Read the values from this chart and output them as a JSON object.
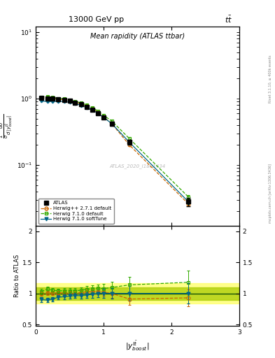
{
  "title_main": "13000 GeV pp",
  "title_right": "tt̅",
  "plot_title": "Mean rapidity (ATLAS ttbar)",
  "ylabel_ratio": "Ratio to ATLAS",
  "xlabel": "$|y^{t\\bar{t}}_{boost}|$",
  "watermark": "ATLAS_2020_I1801434",
  "rivet_label": "Rivet 3.1.10, ≥ 400k events",
  "mcplots_label": "mcplots.cern.ch [arXiv:1306.3436]",
  "x_atlas": [
    0.08,
    0.17,
    0.25,
    0.33,
    0.42,
    0.5,
    0.58,
    0.67,
    0.75,
    0.83,
    0.92,
    1.0,
    1.12,
    1.38,
    2.25
  ],
  "y_atlas": [
    1.02,
    1.01,
    0.99,
    0.97,
    0.95,
    0.92,
    0.87,
    0.82,
    0.75,
    0.68,
    0.6,
    0.52,
    0.42,
    0.22,
    0.028
  ],
  "y_atlas_err": [
    0.04,
    0.03,
    0.03,
    0.03,
    0.03,
    0.03,
    0.03,
    0.03,
    0.03,
    0.03,
    0.03,
    0.03,
    0.03,
    0.02,
    0.004
  ],
  "x_mc": [
    0.08,
    0.17,
    0.25,
    0.33,
    0.42,
    0.5,
    0.58,
    0.67,
    0.75,
    0.83,
    0.92,
    1.0,
    1.12,
    1.38,
    2.25
  ],
  "y_herwig_pp": [
    1.02,
    1.02,
    1.0,
    0.98,
    0.96,
    0.93,
    0.88,
    0.83,
    0.77,
    0.7,
    0.62,
    0.53,
    0.42,
    0.2,
    0.026
  ],
  "y_hpp_err": [
    0.01,
    0.01,
    0.01,
    0.01,
    0.01,
    0.01,
    0.01,
    0.01,
    0.01,
    0.01,
    0.01,
    0.01,
    0.01,
    0.008,
    0.001
  ],
  "y_herwig710d": [
    1.05,
    1.08,
    1.04,
    1.01,
    0.99,
    0.96,
    0.91,
    0.86,
    0.8,
    0.73,
    0.65,
    0.56,
    0.46,
    0.25,
    0.033
  ],
  "y_h710d_err": [
    0.02,
    0.02,
    0.02,
    0.02,
    0.02,
    0.02,
    0.02,
    0.02,
    0.02,
    0.02,
    0.02,
    0.02,
    0.02,
    0.015,
    0.002
  ],
  "y_herwig710s": [
    0.92,
    0.9,
    0.9,
    0.91,
    0.9,
    0.88,
    0.84,
    0.79,
    0.73,
    0.67,
    0.6,
    0.52,
    0.42,
    0.22,
    0.028
  ],
  "y_h710s_err": [
    0.02,
    0.02,
    0.02,
    0.02,
    0.02,
    0.02,
    0.02,
    0.02,
    0.02,
    0.02,
    0.02,
    0.02,
    0.02,
    0.015,
    0.002
  ],
  "color_atlas": "#000000",
  "color_herwig_pp": "#cc6600",
  "color_h710d": "#33aa00",
  "color_h710s": "#006688",
  "band_outer_color": "#ffff66",
  "band_inner_color": "#aacc00",
  "ylim_main": [
    0.012,
    12.0
  ],
  "ylim_ratio": [
    0.48,
    2.08
  ],
  "xlim": [
    0.0,
    3.0
  ]
}
